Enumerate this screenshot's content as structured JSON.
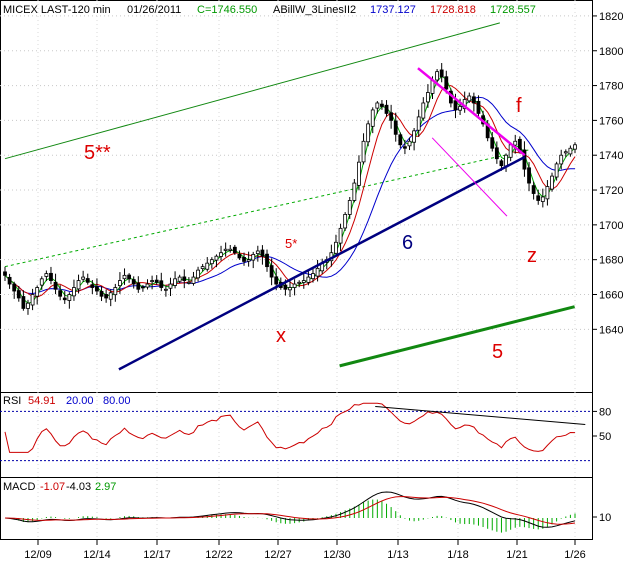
{
  "header": {
    "symbol": "MICEX LAST-120 min",
    "date": "01/26/2011",
    "close": "C=1746.550",
    "indicator": "ABillW_3LinesII2",
    "v1": "1737.127",
    "v2": "1728.818",
    "v3": "1728.557"
  },
  "rsi": {
    "label": "RSI",
    "v1": "54.91",
    "v2": "20.00",
    "v3": "80.00"
  },
  "macd": {
    "label": "MACD",
    "v1": "-1.07",
    "v2": "-4.03",
    "v3": "2.97"
  },
  "annotations": [
    "5**",
    "5*",
    "6",
    "x",
    "f",
    "z",
    "5"
  ],
  "colors": {
    "candle": "#000000",
    "red": "#cc0000",
    "green": "#00aa00",
    "blue": "#0000cc",
    "magenta": "#ee00ee",
    "navy": "#000080",
    "darkgreen": "#118811"
  },
  "chart_data": {
    "type": "candlestick",
    "price_axis": {
      "ylim": [
        1604,
        1828
      ],
      "ticks": [
        1640,
        1660,
        1680,
        1700,
        1720,
        1740,
        1760,
        1780,
        1800,
        1820
      ]
    },
    "rsi_axis": {
      "ylim": [
        0,
        100
      ],
      "ticks": [
        50,
        80
      ],
      "levels": [
        20,
        80
      ]
    },
    "macd_axis": {
      "ticks": [
        10
      ]
    },
    "x_tick_labels": [
      "12/09",
      "12/14",
      "12/17",
      "12/22",
      "12/27",
      "12/30",
      "1/13",
      "1/18",
      "1/21",
      "1/26"
    ],
    "series": [
      {
        "name": "MICEX",
        "type": "candlestick",
        "closes": [
          1671,
          1666,
          1662,
          1658,
          1652,
          1655,
          1660,
          1664,
          1669,
          1672,
          1668,
          1663,
          1659,
          1657,
          1660,
          1664,
          1668,
          1670,
          1667,
          1664,
          1662,
          1659,
          1658,
          1661,
          1664,
          1668,
          1671,
          1669,
          1666,
          1663,
          1664,
          1666,
          1668,
          1667,
          1664,
          1663,
          1666,
          1669,
          1670,
          1668,
          1667,
          1670,
          1674,
          1676,
          1678,
          1680,
          1682,
          1684,
          1686,
          1686,
          1684,
          1681,
          1679,
          1680,
          1683,
          1685,
          1682,
          1676,
          1670,
          1666,
          1664,
          1663,
          1664,
          1666,
          1667,
          1668,
          1670,
          1672,
          1675,
          1678,
          1680,
          1684,
          1690,
          1698,
          1706,
          1714,
          1724,
          1736,
          1748,
          1758,
          1766,
          1770,
          1768,
          1764,
          1760,
          1752,
          1746,
          1744,
          1748,
          1754,
          1762,
          1770,
          1776,
          1783,
          1788,
          1785,
          1778,
          1770,
          1766,
          1768,
          1772,
          1774,
          1770,
          1764,
          1758,
          1750,
          1744,
          1738,
          1734,
          1740,
          1746,
          1748,
          1742,
          1732,
          1724,
          1718,
          1714,
          1716,
          1722,
          1728,
          1735,
          1740,
          1742,
          1744,
          1746
        ]
      }
    ],
    "lines": [
      {
        "name": "5**",
        "x_index": [
          0,
          139
        ],
        "y": [
          1738,
          1816
        ]
      },
      {
        "name": "5*",
        "x_index": [
          0,
          147
        ],
        "y": [
          1676,
          1743
        ]
      },
      {
        "name": "6",
        "x_index": [
          32,
          146
        ],
        "y": [
          1617,
          1739
        ]
      },
      {
        "name": "f upper",
        "x_index": [
          116,
          146
        ],
        "y": [
          1790,
          1740
        ]
      },
      {
        "name": "f lower",
        "x_index": [
          120,
          141
        ],
        "y": [
          1750,
          1705
        ]
      },
      {
        "name": "5",
        "x_index": [
          94,
          160
        ],
        "y": [
          1619,
          1653
        ]
      },
      {
        "name": "rsi trend",
        "x_index": [
          104,
          163
        ],
        "y": [
          86,
          64
        ]
      }
    ]
  }
}
